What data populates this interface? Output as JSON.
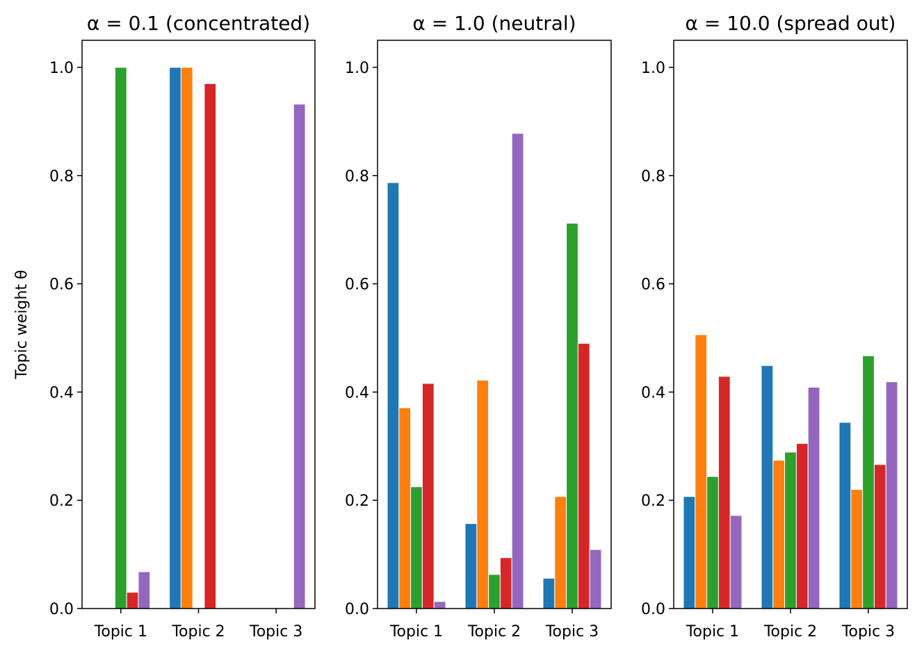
{
  "chart_data": [
    {
      "type": "bar",
      "title": "α = 0.1 (concentrated)",
      "ylabel": "Topic weight θ",
      "xlabel": "",
      "categories": [
        "Topic 1",
        "Topic 2",
        "Topic 3"
      ],
      "ylim": [
        0,
        1.05
      ],
      "yticks": [
        "0.0",
        "0.2",
        "0.4",
        "0.6",
        "0.8",
        "1.0"
      ],
      "grid": false,
      "series": [
        {
          "color": "#1f77b4",
          "values": [
            0.0,
            1.0,
            0.0
          ]
        },
        {
          "color": "#ff7f0e",
          "values": [
            0.0,
            1.0,
            0.0
          ]
        },
        {
          "color": "#2ca02c",
          "values": [
            1.0,
            0.0,
            0.0
          ]
        },
        {
          "color": "#d62728",
          "values": [
            0.03,
            0.97,
            0.0
          ]
        },
        {
          "color": "#9467bd",
          "values": [
            0.068,
            0.0,
            0.932
          ]
        }
      ]
    },
    {
      "type": "bar",
      "title": "α = 1.0 (neutral)",
      "ylabel": "",
      "xlabel": "",
      "categories": [
        "Topic 1",
        "Topic 2",
        "Topic 3"
      ],
      "ylim": [
        0,
        1.05
      ],
      "yticks": [
        "0.0",
        "0.2",
        "0.4",
        "0.6",
        "0.8",
        "1.0"
      ],
      "grid": false,
      "series": [
        {
          "color": "#1f77b4",
          "values": [
            0.787,
            0.157,
            0.056
          ]
        },
        {
          "color": "#ff7f0e",
          "values": [
            0.371,
            0.422,
            0.207
          ]
        },
        {
          "color": "#2ca02c",
          "values": [
            0.225,
            0.063,
            0.712
          ]
        },
        {
          "color": "#d62728",
          "values": [
            0.416,
            0.094,
            0.49
          ]
        },
        {
          "color": "#9467bd",
          "values": [
            0.013,
            0.878,
            0.109
          ]
        }
      ]
    },
    {
      "type": "bar",
      "title": "α = 10.0 (spread out)",
      "ylabel": "",
      "xlabel": "",
      "categories": [
        "Topic 1",
        "Topic 2",
        "Topic 3"
      ],
      "ylim": [
        0,
        1.05
      ],
      "yticks": [
        "0.0",
        "0.2",
        "0.4",
        "0.6",
        "0.8",
        "1.0"
      ],
      "grid": false,
      "series": [
        {
          "color": "#1f77b4",
          "values": [
            0.207,
            0.449,
            0.344
          ]
        },
        {
          "color": "#ff7f0e",
          "values": [
            0.506,
            0.274,
            0.22
          ]
        },
        {
          "color": "#2ca02c",
          "values": [
            0.244,
            0.289,
            0.467
          ]
        },
        {
          "color": "#d62728",
          "values": [
            0.429,
            0.305,
            0.266
          ]
        },
        {
          "color": "#9467bd",
          "values": [
            0.172,
            0.409,
            0.419
          ]
        }
      ]
    }
  ]
}
